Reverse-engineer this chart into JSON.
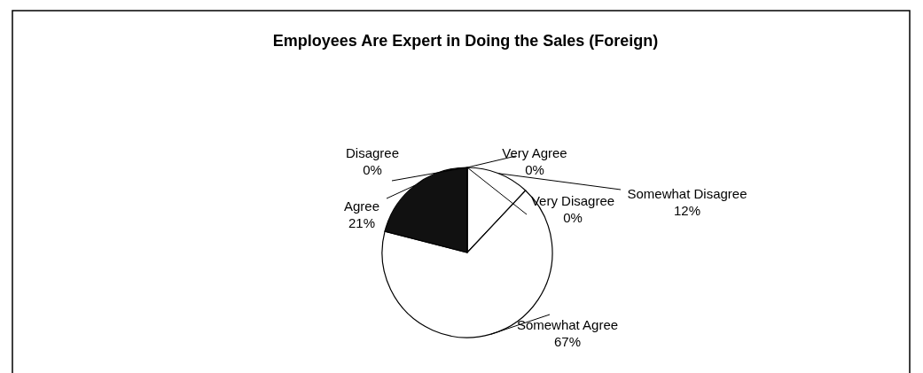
{
  "chart_data": {
    "type": "pie",
    "title": "Employees Are Expert in Doing the Sales (Foreign)",
    "categories": [
      "Very Agree",
      "Very Disagree",
      "Somewhat Disagree",
      "Somewhat Agree",
      "Agree",
      "Disagree"
    ],
    "values": [
      0,
      0,
      12,
      67,
      21,
      0
    ],
    "colors": [
      "#ffffff",
      "#ffffff",
      "#ffffff",
      "#ffffff",
      "#111111",
      "#ffffff"
    ],
    "value_labels": [
      "0%",
      "0%",
      "12%",
      "67%",
      "21%",
      "0%"
    ]
  }
}
